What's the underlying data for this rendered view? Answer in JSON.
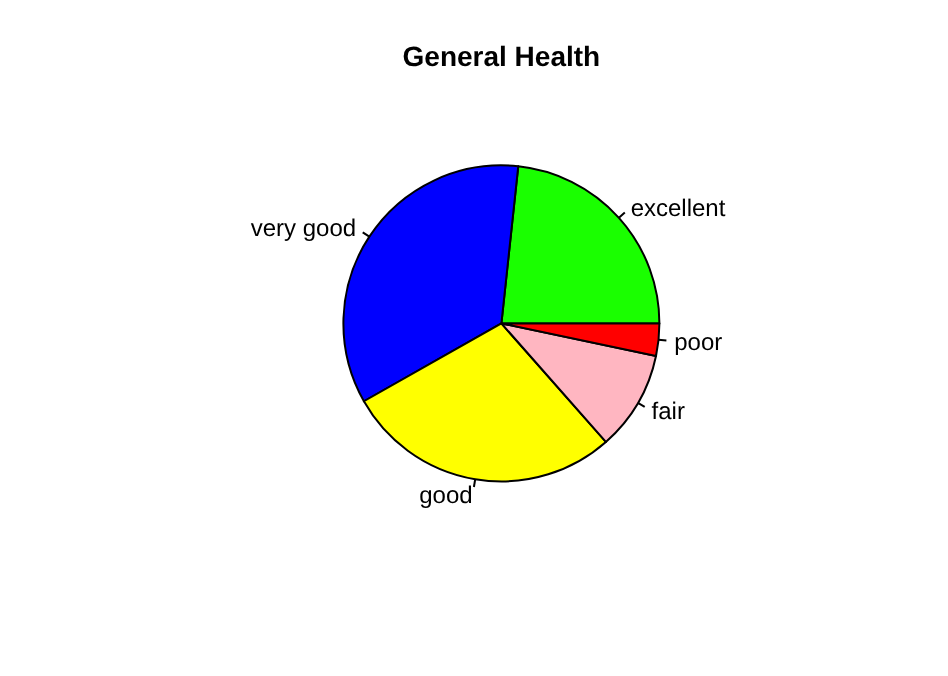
{
  "chart_data": {
    "type": "pie",
    "title": "General Health",
    "categories": [
      "excellent",
      "very good",
      "good",
      "fair",
      "poor"
    ],
    "values": [
      23.3,
      34.9,
      28.3,
      10.2,
      3.3
    ],
    "colors": [
      "#1aff00",
      "#0000ff",
      "#ffff00",
      "#ffb6c1",
      "#ff0000"
    ]
  }
}
